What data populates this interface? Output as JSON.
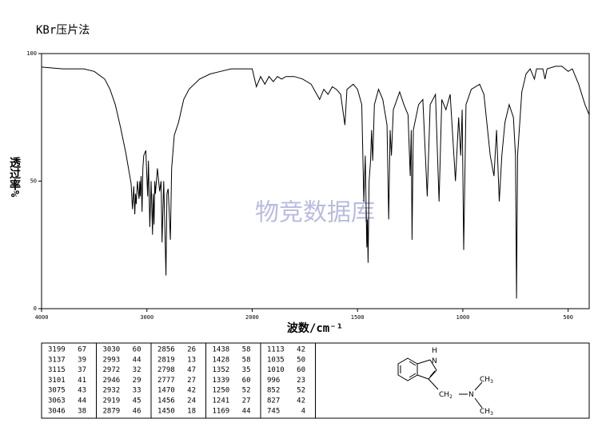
{
  "chart_data": {
    "type": "line",
    "title": "KBr压片法",
    "xlabel": "波数/cm⁻¹",
    "ylabel": "透过率%",
    "annotation": "物竞数据库",
    "xlim": [
      4000,
      400
    ],
    "xscale_break": 2000,
    "ylim": [
      0,
      100
    ],
    "xticks": [
      4000,
      3000,
      2000,
      1500,
      1000,
      500
    ],
    "yticks": [
      0,
      50,
      100
    ],
    "color": "#000000",
    "x": [
      4000,
      3800,
      3600,
      3500,
      3400,
      3350,
      3300,
      3250,
      3200,
      3150,
      3137,
      3125,
      3115,
      3108,
      3101,
      3090,
      3075,
      3068,
      3063,
      3055,
      3046,
      3038,
      3030,
      3010,
      2993,
      2985,
      2972,
      2960,
      2946,
      2940,
      2932,
      2925,
      2919,
      2900,
      2879,
      2865,
      2856,
      2840,
      2819,
      2810,
      2798,
      2790,
      2777,
      2765,
      2740,
      2700,
      2650,
      2600,
      2500,
      2400,
      2300,
      2200,
      2100,
      2000,
      1980,
      1960,
      1940,
      1920,
      1900,
      1880,
      1860,
      1840,
      1800,
      1760,
      1720,
      1700,
      1680,
      1660,
      1640,
      1620,
      1600,
      1580,
      1560,
      1550,
      1520,
      1500,
      1480,
      1470,
      1463,
      1456,
      1453,
      1450,
      1445,
      1438,
      1433,
      1428,
      1420,
      1400,
      1380,
      1360,
      1352,
      1345,
      1339,
      1330,
      1300,
      1280,
      1260,
      1250,
      1245,
      1241,
      1235,
      1210,
      1190,
      1169,
      1155,
      1130,
      1113,
      1100,
      1080,
      1060,
      1035,
      1020,
      1010,
      1003,
      996,
      985,
      960,
      920,
      900,
      870,
      852,
      840,
      827,
      815,
      800,
      780,
      760,
      750,
      745,
      740,
      720,
      700,
      680,
      660,
      650,
      620,
      610,
      600,
      560,
      530,
      500,
      480,
      450,
      420,
      400
    ],
    "values": [
      94.7,
      94,
      94,
      93,
      90,
      86,
      80,
      71,
      61,
      49,
      39,
      48,
      37,
      45,
      41,
      50,
      43,
      50,
      44,
      52,
      38,
      55,
      60,
      62,
      44,
      58,
      32,
      50,
      29,
      45,
      33,
      50,
      45,
      55,
      46,
      50,
      26,
      50,
      13,
      45,
      47,
      40,
      27,
      55,
      68,
      73,
      82,
      86,
      90,
      92,
      93,
      94,
      94,
      94,
      87,
      91,
      88,
      91,
      89,
      91,
      90,
      91,
      91,
      90,
      88,
      85,
      82,
      86,
      84,
      87,
      86,
      84,
      72,
      86,
      88,
      86,
      80,
      42,
      60,
      24,
      35,
      18,
      50,
      58,
      70,
      58,
      80,
      86,
      82,
      72,
      35,
      70,
      60,
      78,
      85,
      80,
      76,
      52,
      70,
      27,
      70,
      80,
      82,
      44,
      80,
      84,
      42,
      82,
      78,
      84,
      50,
      75,
      60,
      78,
      23,
      80,
      86,
      88,
      84,
      60,
      52,
      70,
      42,
      60,
      73,
      80,
      75,
      60,
      4,
      60,
      85,
      92,
      94,
      90,
      94,
      94,
      90,
      94,
      95,
      95,
      93,
      94,
      88,
      80,
      76
    ]
  },
  "peak_table": {
    "columns": [
      [
        [
          3199,
          67
        ],
        [
          3137,
          39
        ],
        [
          3115,
          37
        ],
        [
          3101,
          41
        ],
        [
          3075,
          43
        ],
        [
          3063,
          44
        ],
        [
          3046,
          38
        ]
      ],
      [
        [
          3030,
          60
        ],
        [
          2993,
          44
        ],
        [
          2972,
          32
        ],
        [
          2946,
          29
        ],
        [
          2932,
          33
        ],
        [
          2919,
          45
        ],
        [
          2879,
          46
        ]
      ],
      [
        [
          2856,
          26
        ],
        [
          2819,
          13
        ],
        [
          2798,
          47
        ],
        [
          2777,
          27
        ],
        [
          1470,
          42
        ],
        [
          1456,
          24
        ],
        [
          1450,
          18
        ]
      ],
      [
        [
          1438,
          58
        ],
        [
          1428,
          58
        ],
        [
          1352,
          35
        ],
        [
          1339,
          60
        ],
        [
          1250,
          52
        ],
        [
          1241,
          27
        ],
        [
          1169,
          44
        ]
      ],
      [
        [
          1113,
          42
        ],
        [
          1035,
          50
        ],
        [
          1010,
          60
        ],
        [
          996,
          23
        ],
        [
          852,
          52
        ],
        [
          827,
          42
        ],
        [
          745,
          4
        ]
      ]
    ]
  },
  "structure": {
    "labels": [
      {
        "main": "H"
      },
      {
        "main": "N"
      },
      {
        "main": "CH",
        "sub": "2"
      },
      {
        "main": "N"
      },
      {
        "main": "CH",
        "sub": "3"
      },
      {
        "main": "CH",
        "sub": "3"
      }
    ]
  }
}
